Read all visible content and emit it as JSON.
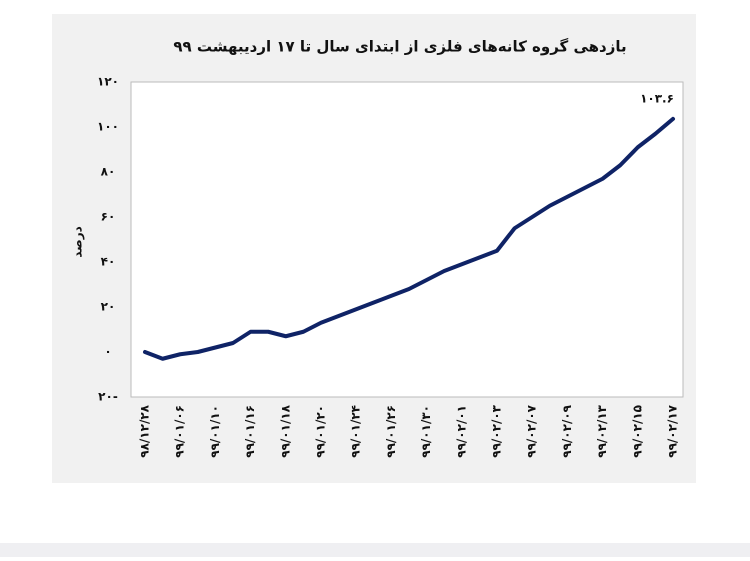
{
  "chart_data": {
    "type": "line",
    "title": "بازدهی گروه کانه‌های فلزی از ابتدای سال تا ۱۷ اردیبهشت ۹۹",
    "y_label": "درصد",
    "categories": [
      "۹۸/۱۲/۲۸",
      null,
      "۹۹/۰۱/۰۶",
      null,
      "۹۹/۰۱/۱۰",
      null,
      "۹۹/۰۱/۱۶",
      null,
      "۹۹/۰۱/۱۸",
      null,
      "۹۹/۰۱/۲۰",
      null,
      "۹۹/۰۱/۲۴",
      null,
      "۹۹/۰۱/۲۶",
      null,
      "۹۹/۰۱/۳۰",
      null,
      "۹۹/۰۲/۰۱",
      null,
      "۹۹/۰۲/۰۳",
      null,
      "۹۹/۰۲/۰۷",
      null,
      "۹۹/۰۲/۰۹",
      null,
      "۹۹/۰۲/۱۳",
      null,
      "۹۹/۰۲/۱۵",
      null,
      "۹۹/۰۲/۱۷"
    ],
    "series": [
      {
        "name": null,
        "color": "#0f2366",
        "values": [
          0,
          -3,
          -1,
          0,
          2,
          4,
          9,
          9,
          7,
          9,
          13,
          16,
          19,
          22,
          25,
          28,
          32,
          36,
          39,
          42,
          45,
          55,
          60,
          65,
          69,
          73,
          77,
          83,
          91,
          97,
          103.6
        ],
        "value_labels": [
          null,
          null,
          null,
          null,
          null,
          null,
          null,
          null,
          null,
          null,
          null,
          null,
          null,
          null,
          null,
          null,
          null,
          null,
          null,
          null,
          null,
          null,
          null,
          null,
          null,
          null,
          null,
          null,
          null,
          null,
          "۱۰۳.۶"
        ]
      }
    ],
    "ylim": [
      -20,
      120
    ],
    "yticks": [
      {
        "value": -20,
        "label": "-۲۰"
      },
      {
        "value": 0,
        "label": "۰"
      },
      {
        "value": 20,
        "label": "۲۰"
      },
      {
        "value": 40,
        "label": "۴۰"
      },
      {
        "value": 60,
        "label": "۶۰"
      },
      {
        "value": 80,
        "label": "۸۰"
      },
      {
        "value": 100,
        "label": "۱۰۰"
      },
      {
        "value": 120,
        "label": "۱۲۰"
      }
    ],
    "grid": false
  }
}
